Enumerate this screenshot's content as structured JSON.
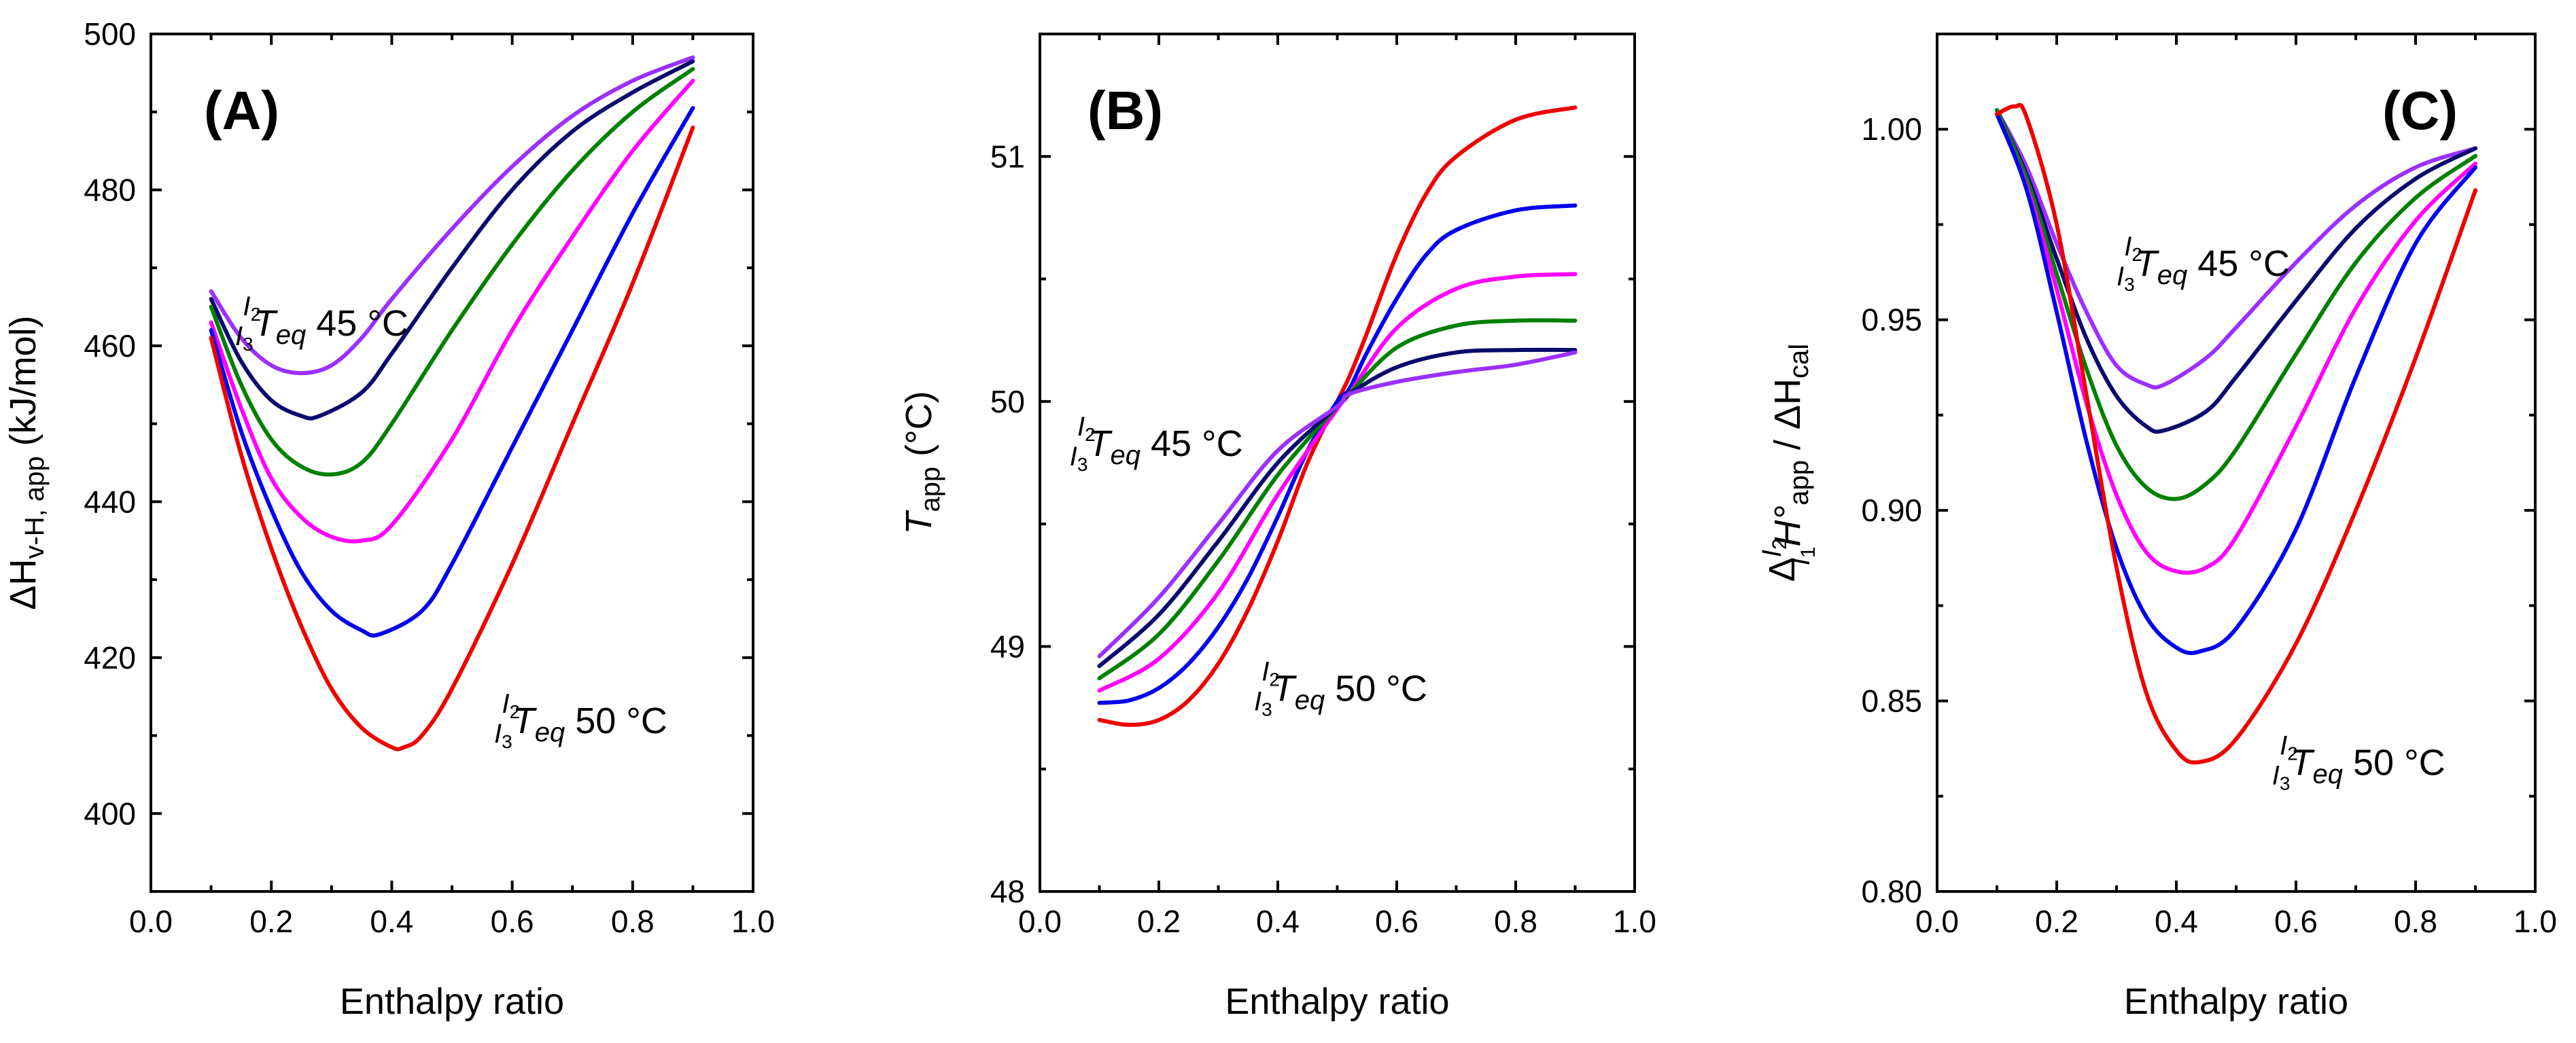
{
  "chart_data": [
    {
      "type": "line",
      "panel_label": "(A)",
      "xlabel": "Enthalpy ratio",
      "ylabel": {
        "base": "ΔH",
        "sub": "v-H, app",
        "suffix": " (kJ/mol)"
      },
      "xlim": [
        0.0,
        1.0
      ],
      "ylim": [
        390,
        500
      ],
      "xticks": [
        "0.0",
        "0.2",
        "0.4",
        "0.6",
        "0.8",
        "1.0"
      ],
      "yticks": [
        "400",
        "420",
        "440",
        "460",
        "480",
        "500"
      ],
      "xtick_values": [
        0.0,
        0.2,
        0.4,
        0.6,
        0.8,
        1.0
      ],
      "ytick_values": [
        400,
        420,
        440,
        460,
        480,
        500
      ],
      "annotations": [
        {
          "sup": "I",
          "sup_sub": "2",
          "sub": "I",
          "sub_sub": "3",
          "var": "T",
          "var_sub": "eq",
          "value": "45 °C",
          "at": [
            0.14,
            462
          ]
        },
        {
          "sup": "I",
          "sup_sub": "2",
          "sub": "I",
          "sub_sub": "3",
          "var": "T",
          "var_sub": "eq",
          "value": "50 °C",
          "at": [
            0.57,
            411
          ]
        }
      ],
      "series": [
        {
          "color": "#9b30ff",
          "x": [
            0.1,
            0.15,
            0.2,
            0.25,
            0.3,
            0.35,
            0.4,
            0.5,
            0.6,
            0.7,
            0.8,
            0.9
          ],
          "y": [
            467,
            461,
            457.5,
            456.5,
            457.5,
            461,
            466,
            475,
            483,
            489.5,
            494,
            497
          ]
        },
        {
          "color": "#0a0a6e",
          "x": [
            0.1,
            0.15,
            0.2,
            0.25,
            0.28,
            0.35,
            0.4,
            0.5,
            0.6,
            0.7,
            0.8,
            0.9
          ],
          "y": [
            466,
            458,
            453,
            451,
            451,
            454,
            459,
            470,
            480,
            487.5,
            492.5,
            496.5
          ]
        },
        {
          "color": "#008000",
          "x": [
            0.1,
            0.15,
            0.2,
            0.25,
            0.3,
            0.35,
            0.4,
            0.5,
            0.6,
            0.7,
            0.8,
            0.9
          ],
          "y": [
            465,
            455,
            448,
            444.5,
            443.5,
            445,
            450,
            462,
            473,
            482.5,
            490,
            495.5
          ]
        },
        {
          "color": "#ff00ff",
          "x": [
            0.1,
            0.15,
            0.2,
            0.25,
            0.3,
            0.35,
            0.4,
            0.5,
            0.6,
            0.7,
            0.8,
            0.9
          ],
          "y": [
            463,
            452,
            443,
            438,
            435.5,
            435,
            437,
            448,
            462,
            474,
            485,
            494
          ]
        },
        {
          "color": "#0000ee",
          "x": [
            0.1,
            0.15,
            0.2,
            0.25,
            0.3,
            0.35,
            0.38,
            0.45,
            0.5,
            0.6,
            0.7,
            0.8,
            0.9
          ],
          "y": [
            462,
            449,
            439,
            431,
            426,
            423.5,
            423,
            426,
            432,
            447,
            462,
            477,
            490.5
          ]
        },
        {
          "color": "#ee0000",
          "x": [
            0.1,
            0.15,
            0.2,
            0.25,
            0.3,
            0.35,
            0.4,
            0.42,
            0.45,
            0.5,
            0.6,
            0.7,
            0.8,
            0.9
          ],
          "y": [
            461,
            446,
            434,
            424,
            416,
            411,
            408.5,
            408.5,
            410,
            416,
            432,
            450,
            468,
            488
          ]
        }
      ]
    },
    {
      "type": "line",
      "panel_label": "(B)",
      "xlabel": "Enthalpy ratio",
      "ylabel": {
        "base": "T",
        "sub": "app",
        "suffix": " (°C)"
      },
      "xlim": [
        0.0,
        1.0
      ],
      "ylim": [
        48.0,
        51.5
      ],
      "xticks": [
        "0.0",
        "0.2",
        "0.4",
        "0.6",
        "0.8",
        "1.0"
      ],
      "yticks": [
        "48",
        "49",
        "50",
        "51"
      ],
      "xtick_values": [
        0.0,
        0.2,
        0.4,
        0.6,
        0.8,
        1.0
      ],
      "ytick_values": [
        48,
        49,
        50,
        51
      ],
      "annotations": [
        {
          "sup": "I",
          "sup_sub": "2",
          "sub": "I",
          "sub_sub": "3",
          "var": "T",
          "var_sub": "eq",
          "value": "45 °C",
          "at": [
            0.05,
            49.8
          ]
        },
        {
          "sup": "I",
          "sup_sub": "2",
          "sub": "I",
          "sub_sub": "3",
          "var": "T",
          "var_sub": "eq",
          "value": "50 °C",
          "at": [
            0.36,
            48.8
          ]
        }
      ],
      "series": [
        {
          "color": "#ee0000",
          "x": [
            0.1,
            0.15,
            0.2,
            0.25,
            0.3,
            0.35,
            0.4,
            0.45,
            0.5,
            0.52,
            0.55,
            0.6,
            0.65,
            0.7,
            0.8,
            0.9
          ],
          "y": [
            48.7,
            48.68,
            48.7,
            48.78,
            48.93,
            49.15,
            49.43,
            49.75,
            50.0,
            50.1,
            50.28,
            50.6,
            50.85,
            51.0,
            51.15,
            51.2
          ]
        },
        {
          "color": "#0000ee",
          "x": [
            0.1,
            0.15,
            0.2,
            0.25,
            0.3,
            0.35,
            0.4,
            0.45,
            0.5,
            0.52,
            0.55,
            0.6,
            0.65,
            0.7,
            0.8,
            0.9
          ],
          "y": [
            48.77,
            48.78,
            48.83,
            48.93,
            49.08,
            49.28,
            49.53,
            49.8,
            50.0,
            50.05,
            50.2,
            50.42,
            50.6,
            50.7,
            50.78,
            50.8
          ]
        },
        {
          "color": "#ff00ff",
          "x": [
            0.1,
            0.2,
            0.3,
            0.4,
            0.5,
            0.52,
            0.6,
            0.7,
            0.8,
            0.9
          ],
          "y": [
            48.82,
            48.95,
            49.22,
            49.62,
            49.97,
            50.03,
            50.3,
            50.46,
            50.51,
            50.52
          ]
        },
        {
          "color": "#008000",
          "x": [
            0.1,
            0.2,
            0.3,
            0.4,
            0.5,
            0.52,
            0.6,
            0.7,
            0.8,
            0.9
          ],
          "y": [
            48.87,
            49.05,
            49.35,
            49.7,
            49.98,
            50.03,
            50.22,
            50.31,
            50.33,
            50.33
          ]
        },
        {
          "color": "#0a0a6e",
          "x": [
            0.1,
            0.2,
            0.3,
            0.4,
            0.5,
            0.52,
            0.6,
            0.7,
            0.8,
            0.9
          ],
          "y": [
            48.92,
            49.13,
            49.43,
            49.75,
            49.98,
            50.03,
            50.14,
            50.2,
            50.21,
            50.21
          ]
        },
        {
          "color": "#9b30ff",
          "x": [
            0.1,
            0.2,
            0.3,
            0.4,
            0.5,
            0.52,
            0.6,
            0.7,
            0.8,
            0.9
          ],
          "y": [
            48.96,
            49.2,
            49.5,
            49.8,
            49.98,
            50.03,
            50.08,
            50.12,
            50.15,
            50.2
          ]
        }
      ]
    },
    {
      "type": "line",
      "panel_label": "(C)",
      "xlabel": "Enthalpy ratio",
      "ylabel": {
        "base": "Δ",
        "sup": "I",
        "sup_sub": "2",
        "sub": "I",
        "sub_sub": "1",
        "mid": "H°",
        "mid_sub": "app",
        "suffix": " / ΔH",
        "suffix_sub": "cal"
      },
      "xlim": [
        0.0,
        1.0
      ],
      "ylim": [
        0.8,
        1.025
      ],
      "xticks": [
        "0.0",
        "0.2",
        "0.4",
        "0.6",
        "0.8",
        "1.0"
      ],
      "yticks": [
        "0.80",
        "0.85",
        "0.90",
        "0.95",
        "1.00"
      ],
      "xtick_values": [
        0.0,
        0.2,
        0.4,
        0.6,
        0.8,
        1.0
      ],
      "ytick_values": [
        0.8,
        0.85,
        0.9,
        0.95,
        1.0
      ],
      "annotations": [
        {
          "sup": "I",
          "sup_sub": "2",
          "sub": "I",
          "sub_sub": "3",
          "var": "T",
          "var_sub": "eq",
          "value": "45 °C",
          "at": [
            0.3,
            0.963
          ]
        },
        {
          "sup": "I",
          "sup_sub": "2",
          "sub": "I",
          "sub_sub": "3",
          "var": "T",
          "var_sub": "eq",
          "value": "50 °C",
          "at": [
            0.56,
            0.832
          ]
        }
      ],
      "series": [
        {
          "color": "#9b30ff",
          "x": [
            0.1,
            0.15,
            0.2,
            0.25,
            0.3,
            0.35,
            0.38,
            0.45,
            0.5,
            0.6,
            0.7,
            0.8,
            0.9
          ],
          "y": [
            1.005,
            0.99,
            0.97,
            0.952,
            0.938,
            0.933,
            0.933,
            0.94,
            0.948,
            0.965,
            0.98,
            0.99,
            0.995
          ]
        },
        {
          "color": "#0a0a6e",
          "x": [
            0.1,
            0.15,
            0.2,
            0.25,
            0.3,
            0.35,
            0.38,
            0.45,
            0.5,
            0.6,
            0.7,
            0.8,
            0.9
          ],
          "y": [
            1.005,
            0.988,
            0.966,
            0.945,
            0.93,
            0.922,
            0.921,
            0.926,
            0.935,
            0.955,
            0.974,
            0.987,
            0.995
          ]
        },
        {
          "color": "#008000",
          "x": [
            0.1,
            0.15,
            0.2,
            0.25,
            0.3,
            0.35,
            0.4,
            0.45,
            0.5,
            0.6,
            0.7,
            0.8,
            0.9
          ],
          "y": [
            1.005,
            0.987,
            0.962,
            0.937,
            0.917,
            0.906,
            0.903,
            0.907,
            0.916,
            0.941,
            0.965,
            0.982,
            0.993
          ]
        },
        {
          "color": "#ff00ff",
          "x": [
            0.1,
            0.15,
            0.2,
            0.25,
            0.3,
            0.35,
            0.4,
            0.45,
            0.5,
            0.6,
            0.7,
            0.8,
            0.9
          ],
          "y": [
            1.004,
            0.985,
            0.958,
            0.928,
            0.904,
            0.889,
            0.884,
            0.885,
            0.893,
            0.922,
            0.953,
            0.976,
            0.991
          ]
        },
        {
          "color": "#0000ee",
          "x": [
            0.1,
            0.15,
            0.2,
            0.25,
            0.3,
            0.35,
            0.4,
            0.44,
            0.5,
            0.6,
            0.7,
            0.8,
            0.9
          ],
          "y": [
            1.004,
            0.984,
            0.952,
            0.918,
            0.89,
            0.872,
            0.864,
            0.863,
            0.869,
            0.895,
            0.935,
            0.97,
            0.99
          ]
        },
        {
          "color": "#ee0000",
          "x": [
            0.1,
            0.13,
            0.15,
            0.2,
            0.25,
            0.3,
            0.35,
            0.4,
            0.44,
            0.5,
            0.6,
            0.7,
            0.8,
            0.9
          ],
          "y": [
            1.004,
            1.006,
            1.003,
            0.975,
            0.93,
            0.885,
            0.852,
            0.837,
            0.834,
            0.84,
            0.865,
            0.9,
            0.94,
            0.984
          ]
        }
      ]
    }
  ]
}
